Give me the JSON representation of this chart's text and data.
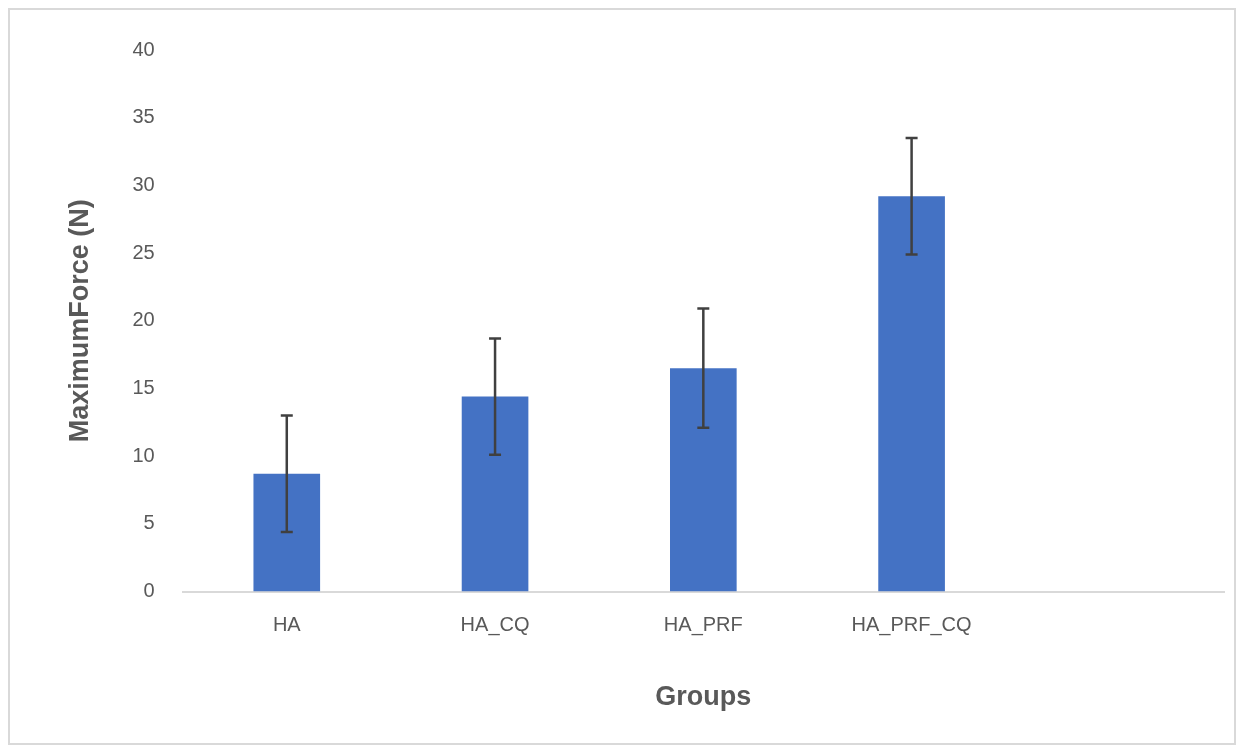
{
  "chart_data": {
    "type": "bar",
    "xlabel": "Groups",
    "ylabel": "MaximumForce (N)",
    "categories": [
      "HA",
      "HA_CQ",
      "HA_PRF",
      "HA_PRF_CQ",
      null
    ],
    "values": [
      8.7,
      14.4,
      16.5,
      29.2,
      null
    ],
    "errors": [
      4.3,
      4.3,
      4.4,
      4.3,
      null
    ],
    "color": "#4472c4",
    "ylim": [
      0,
      40
    ],
    "yticks": [
      0,
      5,
      10,
      15,
      20,
      25,
      30,
      35,
      40
    ],
    "grid": false,
    "legend": false
  }
}
